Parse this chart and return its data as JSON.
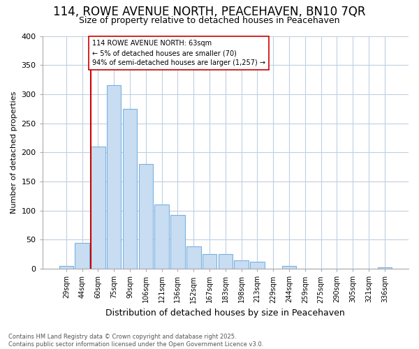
{
  "title_line1": "114, ROWE AVENUE NORTH, PEACEHAVEN, BN10 7QR",
  "title_line2": "Size of property relative to detached houses in Peacehaven",
  "xlabel": "Distribution of detached houses by size in Peacehaven",
  "ylabel": "Number of detached properties",
  "categories": [
    "29sqm",
    "44sqm",
    "60sqm",
    "75sqm",
    "90sqm",
    "106sqm",
    "121sqm",
    "136sqm",
    "152sqm",
    "167sqm",
    "183sqm",
    "198sqm",
    "213sqm",
    "229sqm",
    "244sqm",
    "259sqm",
    "275sqm",
    "290sqm",
    "305sqm",
    "321sqm",
    "336sqm"
  ],
  "values": [
    5,
    44,
    210,
    315,
    275,
    180,
    110,
    93,
    38,
    25,
    25,
    15,
    12,
    0,
    5,
    0,
    0,
    0,
    0,
    0,
    3
  ],
  "bar_color": "#c8ddf2",
  "bar_edge_color": "#7ab0e0",
  "vline_x_index": 2,
  "vline_color": "#cc0000",
  "annotation_text": "114 ROWE AVENUE NORTH: 63sqm\n← 5% of detached houses are smaller (70)\n94% of semi-detached houses are larger (1,257) →",
  "annotation_box_color": "white",
  "annotation_box_edge": "#cc0000",
  "fig_background": "#ffffff",
  "plot_background": "#ffffff",
  "grid_color": "#c0cfe0",
  "footer_line1": "Contains HM Land Registry data © Crown copyright and database right 2025.",
  "footer_line2": "Contains public sector information licensed under the Open Government Licence v3.0.",
  "ylim": [
    0,
    400
  ],
  "yticks": [
    0,
    50,
    100,
    150,
    200,
    250,
    300,
    350,
    400
  ]
}
